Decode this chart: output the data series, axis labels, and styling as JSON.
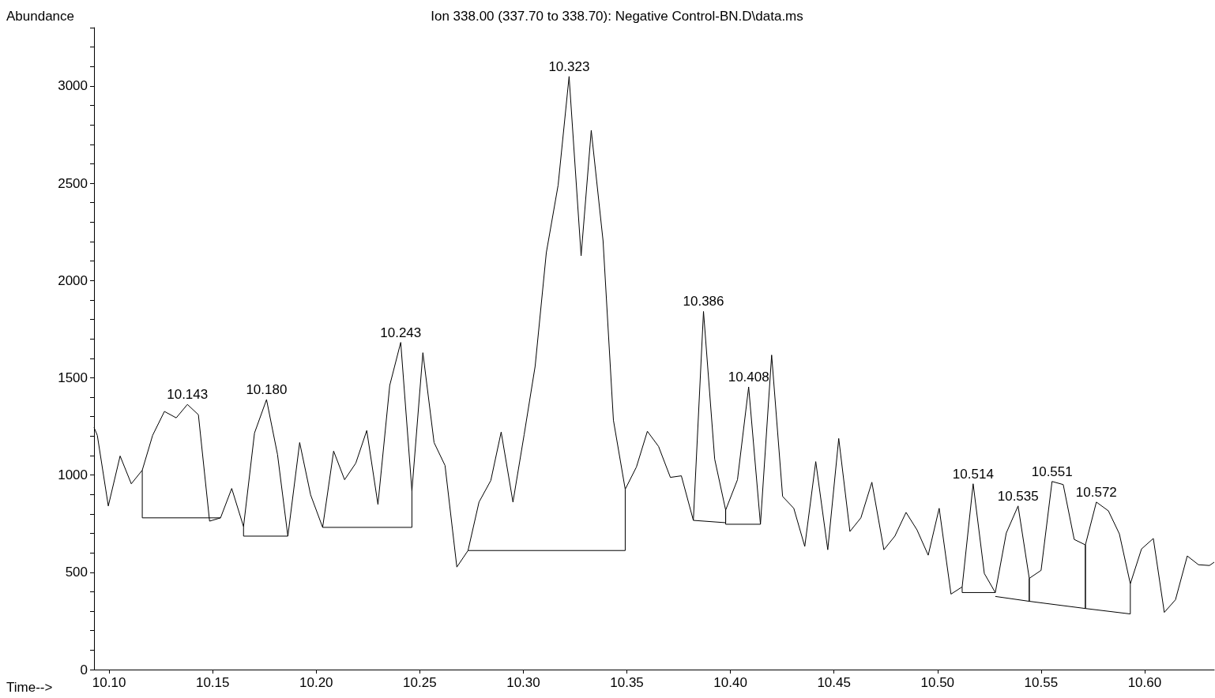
{
  "chart_data": {
    "type": "line",
    "title": "Ion 338.00 (337.70 to 338.70): Negative Control-BN.D\\data.ms",
    "xlabel": "Time-->",
    "ylabel": "Abundance",
    "xlim": [
      10.0927,
      10.6336
    ],
    "ylim": [
      0,
      3300
    ],
    "xticks": [
      {
        "value": 10.1,
        "label": "10.10"
      },
      {
        "value": 10.15,
        "label": "10.15"
      },
      {
        "value": 10.2,
        "label": "10.20"
      },
      {
        "value": 10.25,
        "label": "10.25"
      },
      {
        "value": 10.3,
        "label": "10.30"
      },
      {
        "value": 10.35,
        "label": "10.35"
      },
      {
        "value": 10.4,
        "label": "10.40"
      },
      {
        "value": 10.45,
        "label": "10.45"
      },
      {
        "value": 10.5,
        "label": "10.50"
      },
      {
        "value": 10.55,
        "label": "10.55"
      },
      {
        "value": 10.6,
        "label": "10.60"
      }
    ],
    "yticks": [
      0,
      {
        "value": 100,
        "label": null
      },
      {
        "value": 200,
        "label": null
      },
      {
        "value": 300,
        "label": null
      },
      {
        "value": 400,
        "label": null
      },
      500,
      {
        "value": 600,
        "label": null
      },
      {
        "value": 700,
        "label": null
      },
      {
        "value": 800,
        "label": null
      },
      {
        "value": 900,
        "label": null
      },
      1000,
      {
        "value": 1100,
        "label": null
      },
      {
        "value": 1200,
        "label": null
      },
      {
        "value": 1300,
        "label": null
      },
      {
        "value": 1400,
        "label": null
      },
      1500,
      {
        "value": 1600,
        "label": null
      },
      {
        "value": 1700,
        "label": null
      },
      {
        "value": 1800,
        "label": null
      },
      {
        "value": 1900,
        "label": null
      },
      2000,
      {
        "value": 2100,
        "label": null
      },
      {
        "value": 2200,
        "label": null
      },
      {
        "value": 2300,
        "label": null
      },
      {
        "value": 2400,
        "label": null
      },
      2500,
      {
        "value": 2600,
        "label": null
      },
      {
        "value": 2700,
        "label": null
      },
      {
        "value": 2800,
        "label": null
      },
      {
        "value": 2900,
        "label": null
      },
      3000,
      {
        "value": 3100,
        "label": null
      },
      {
        "value": 3200,
        "label": null
      },
      {
        "value": 3300,
        "label": null
      }
    ],
    "grid": false,
    "marker": "none",
    "line_style": "solid",
    "series": [
      {
        "color": "#000000",
        "x": [
          10.0927,
          10.0943,
          10.0996,
          10.1053,
          10.1107,
          10.116,
          10.121,
          10.1267,
          10.1324,
          10.1378,
          10.1431,
          10.1485,
          10.1538,
          10.1592,
          10.1649,
          10.1702,
          10.176,
          10.1813,
          10.1863,
          10.192,
          10.1973,
          10.2031,
          10.2084,
          10.2137,
          10.2191,
          10.2244,
          10.2298,
          10.2355,
          10.2408,
          10.2462,
          10.2515,
          10.2569,
          10.2622,
          10.2679,
          10.2733,
          10.2786,
          10.2843,
          10.2893,
          10.295,
          10.3004,
          10.3057,
          10.3111,
          10.3168,
          10.3221,
          10.3279,
          10.3328,
          10.3385,
          10.3435,
          10.3492,
          10.3546,
          10.3599,
          10.3653,
          10.371,
          10.3763,
          10.3821,
          10.387,
          10.3924,
          10.3977,
          10.4034,
          10.4088,
          10.4145,
          10.4199,
          10.4252,
          10.4306,
          10.4359,
          10.4412,
          10.447,
          10.4523,
          10.4577,
          10.463,
          10.4683,
          10.4741,
          10.4794,
          10.4848,
          10.4901,
          10.4955,
          10.5008,
          10.5065,
          10.5119,
          10.5172,
          10.5226,
          10.5279,
          10.5332,
          10.5389,
          10.5443,
          10.55,
          10.5553,
          10.5607,
          10.566,
          10.5714,
          10.5767,
          10.5825,
          10.5878,
          10.5931,
          10.5985,
          10.6042,
          10.6095,
          10.6149,
          10.6206,
          10.626,
          10.6313,
          10.6336
        ],
        "values": [
          1245,
          1204,
          841,
          1098,
          955,
          1025,
          1204,
          1327,
          1294,
          1363,
          1310,
          763,
          780,
          931,
          735,
          1216,
          1388,
          1106,
          686,
          1167,
          898,
          731,
          1123,
          976,
          1061,
          1229,
          849,
          1461,
          1682,
          918,
          1629,
          1167,
          1049,
          527,
          612,
          861,
          972,
          1221,
          861,
          1208,
          1559,
          2143,
          2490,
          3049,
          2127,
          2772,
          2204,
          1282,
          927,
          1041,
          1225,
          1147,
          988,
          996,
          767,
          1841,
          1082,
          820,
          976,
          1453,
          747,
          1617,
          890,
          829,
          633,
          1069,
          616,
          1188,
          710,
          780,
          963,
          616,
          686,
          808,
          718,
          588,
          829,
          388,
          425,
          955,
          494,
          396,
          702,
          841,
          469,
          510,
          967,
          951,
          669,
          641,
          861,
          816,
          698,
          441,
          620,
          674,
          294,
          359,
          584,
          539,
          535,
          552
        ]
      },
      {
        "color": "#000000",
        "x": [
          10.116,
          10.116,
          10.1538
        ],
        "values": [
          1025,
          780,
          780
        ]
      },
      {
        "color": "#000000",
        "x": [
          10.1649,
          10.1649,
          10.1863
        ],
        "values": [
          735,
          686,
          686
        ]
      },
      {
        "color": "#000000",
        "x": [
          10.2031,
          10.2462,
          10.2462
        ],
        "values": [
          731,
          731,
          918
        ]
      },
      {
        "color": "#000000",
        "x": [
          10.2733,
          10.3492,
          10.3492
        ],
        "values": [
          612,
          612,
          927
        ]
      },
      {
        "color": "#000000",
        "x": [
          10.3821,
          10.3977,
          10.3977
        ],
        "values": [
          767,
          755,
          820
        ]
      },
      {
        "color": "#000000",
        "x": [
          10.3977,
          10.3977,
          10.4145
        ],
        "values": [
          820,
          747,
          747
        ]
      },
      {
        "color": "#000000",
        "x": [
          10.5119,
          10.5119,
          10.5279
        ],
        "values": [
          425,
          396,
          396
        ]
      },
      {
        "color": "#000000",
        "x": [
          10.5279,
          10.5443,
          10.5443,
          10.5443,
          10.5714,
          10.5714,
          10.5714,
          10.5931,
          10.5931
        ],
        "values": [
          376,
          351,
          469,
          351,
          314,
          641,
          314,
          286,
          441
        ]
      }
    ],
    "annotations": [
      {
        "text": "10.143",
        "x": 10.1378,
        "y": 1363
      },
      {
        "text": "10.180",
        "x": 10.176,
        "y": 1388
      },
      {
        "text": "10.243",
        "x": 10.2408,
        "y": 1682
      },
      {
        "text": "10.323",
        "x": 10.3221,
        "y": 3049
      },
      {
        "text": "10.386",
        "x": 10.387,
        "y": 1841
      },
      {
        "text": "10.408",
        "x": 10.4088,
        "y": 1453
      },
      {
        "text": "10.514",
        "x": 10.5172,
        "y": 955
      },
      {
        "text": "10.535",
        "x": 10.5389,
        "y": 841
      },
      {
        "text": "10.551",
        "x": 10.5553,
        "y": 967
      },
      {
        "text": "10.572",
        "x": 10.5767,
        "y": 861
      }
    ]
  }
}
